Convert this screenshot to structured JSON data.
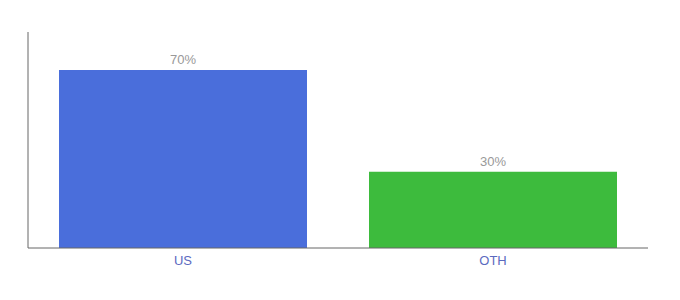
{
  "chart_data": {
    "type": "bar",
    "categories": [
      "US",
      "OTH"
    ],
    "values": [
      70,
      30
    ],
    "colors": [
      "#4a6edb",
      "#3dbb3d"
    ],
    "value_labels": [
      "70%",
      "30%"
    ],
    "data_labels": true,
    "ylim": [
      0,
      85
    ],
    "tick_labels": "x"
  }
}
